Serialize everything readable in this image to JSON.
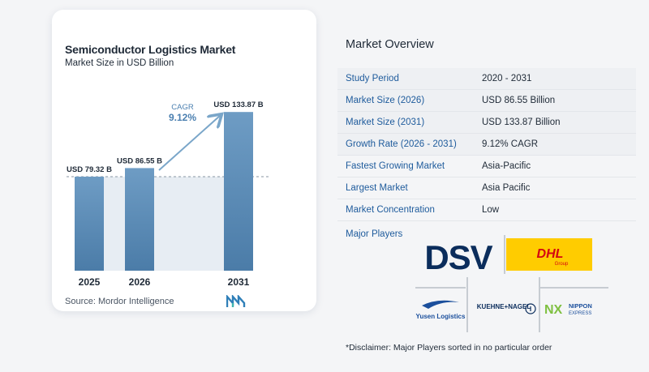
{
  "chart": {
    "title": "Semiconductor Logistics Market",
    "subtitle": "Market Size in USD Billion",
    "source": "Source:  Mordor Intelligence",
    "cagr_label": "CAGR",
    "cagr_value": "9.12%"
  },
  "chart_data": {
    "type": "bar",
    "title": "Semiconductor Logistics Market",
    "subtitle": "Market Size in USD Billion",
    "categories": [
      "2025",
      "2026",
      "2031"
    ],
    "values": [
      79.32,
      86.55,
      133.87
    ],
    "data_labels": [
      "USD 79.32 B",
      "USD 86.55 B",
      "USD 133.87 B"
    ],
    "annotation": "CAGR 9.12%",
    "ylim": [
      0,
      140
    ],
    "grid": false,
    "colors": {
      "bar_top": "#6e9cc4",
      "bar_bottom": "#4b7ca8",
      "band": "#dde6ee",
      "arrow": "#7aa6c9",
      "cagr_text": "#4a7fb0"
    }
  },
  "overview": {
    "title": "Market Overview",
    "rows": [
      {
        "label": "Study Period",
        "value": "2020 - 2031"
      },
      {
        "label": "Market Size (2026)",
        "value": "USD 86.55 Billion"
      },
      {
        "label": "Market Size (2031)",
        "value": "USD 133.87 Billion"
      },
      {
        "label": "Growth Rate (2026 - 2031)",
        "value": "9.12% CAGR"
      },
      {
        "label": "Fastest Growing Market",
        "value": "Asia-Pacific"
      },
      {
        "label": "Largest Market",
        "value": "Asia Pacific"
      },
      {
        "label": "Market Concentration",
        "value": "Low"
      }
    ],
    "players_label": "Major Players",
    "players": {
      "dsv": "DSV",
      "dhl": "DHL",
      "dhl_sub": "Group",
      "yusen": "Yusen Logistics",
      "kuehne": "KUEHNE+NAGEL",
      "nx": "NX",
      "nippon_1": "NIPPON",
      "nippon_2": "EXPRESS"
    },
    "disclaimer": "*Disclaimer: Major Players sorted in no particular order"
  }
}
